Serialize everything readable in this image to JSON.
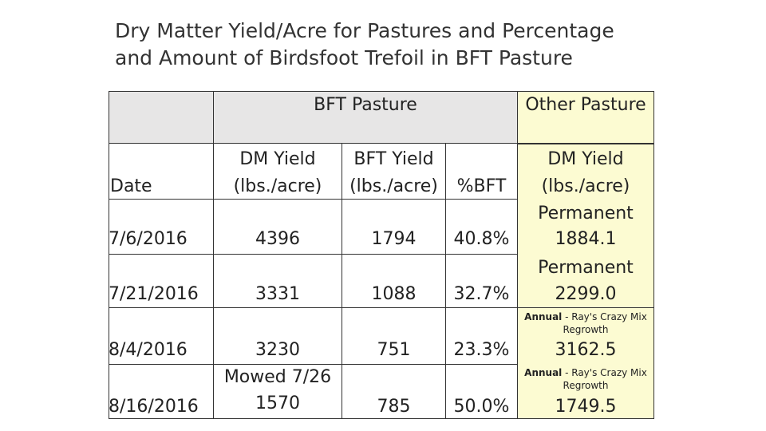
{
  "title": {
    "line1": "Dry Matter Yield/Acre for Pastures and Percentage",
    "line2": "and Amount of Birdsfoot Trefoil in BFT Pasture"
  },
  "table": {
    "group_headers": {
      "bft": "BFT Pasture",
      "other": "Other Pasture"
    },
    "col_headers": {
      "date": "Date",
      "dm_yield_1": "DM Yield",
      "dm_yield_2": "(lbs./acre)",
      "bft_yield_1": "BFT  Yield",
      "bft_yield_2": "(lbs./acre)",
      "pct_bft": "%BFT",
      "other_dm_1": "DM Yield",
      "other_dm_2": "(lbs./acre)"
    },
    "rows": [
      {
        "date": "7/6/2016",
        "dm": "4396",
        "bft": "1794",
        "pct": "40.8%",
        "other_label": "Permanent",
        "other_value": "1884.1"
      },
      {
        "date": "7/21/2016",
        "dm": "3331",
        "bft": "1088",
        "pct": "32.7%",
        "other_label": "Permanent",
        "other_value": "2299.0"
      },
      {
        "date": "8/4/2016",
        "dm": "3230",
        "bft": "751",
        "pct": "23.3%",
        "other_label_bold": "Annual",
        "other_label_rest": " - Ray's Crazy Mix Regrowth",
        "other_value": "3162.5"
      },
      {
        "date": "8/16/2016",
        "dm_note": "Mowed 7/26",
        "dm": "1570",
        "bft": "785",
        "pct": "50.0%",
        "other_label_bold": "Annual",
        "other_label_rest": " - Ray's Crazy Mix Regrowth",
        "other_value": "1749.5"
      }
    ]
  },
  "colors": {
    "header_gray": "#e7e6e6",
    "other_yellow": "#fcfbd2"
  }
}
